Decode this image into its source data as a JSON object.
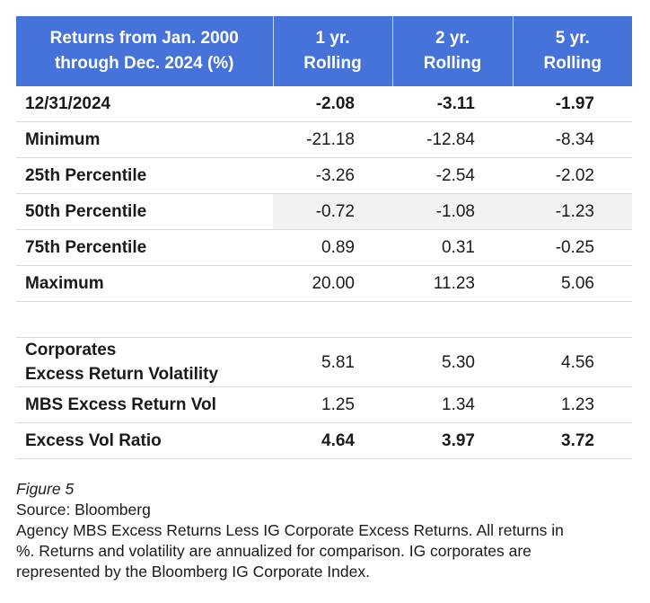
{
  "table": {
    "headers": {
      "label_line1": "Returns from Jan. 2000",
      "label_line2": "through Dec. 2024 (%)",
      "col1_line1": "1 yr.",
      "col1_line2": "Rolling",
      "col2_line1": "2 yr.",
      "col2_line2": "Rolling",
      "col3_line1": "5 yr.",
      "col3_line2": "Rolling"
    },
    "rows": [
      {
        "label": "12/31/2024",
        "v1": "-2.08",
        "v2": "-3.11",
        "v3": "-1.97"
      },
      {
        "label": "Minimum",
        "v1": "-21.18",
        "v2": "-12.84",
        "v3": "-8.34"
      },
      {
        "label": "25th Percentile",
        "v1": "-3.26",
        "v2": "-2.54",
        "v3": "-2.02"
      },
      {
        "label": "50th Percentile",
        "v1": "-0.72",
        "v2": "-1.08",
        "v3": "-1.23"
      },
      {
        "label": "75th Percentile",
        "v1": "0.89",
        "v2": "0.31",
        "v3": "-0.25"
      },
      {
        "label": "Maximum",
        "v1": "20.00",
        "v2": "11.23",
        "v3": "5.06"
      }
    ],
    "vol_rows": [
      {
        "label_line1": "Corporates",
        "label_line2": "Excess Return Volatility",
        "v1": "5.81",
        "v2": "5.30",
        "v3": "4.56"
      },
      {
        "label": "MBS Excess Return Vol",
        "v1": "1.25",
        "v2": "1.34",
        "v3": "1.23"
      },
      {
        "label": "Excess Vol Ratio",
        "v1": "4.64",
        "v2": "3.97",
        "v3": "3.72"
      }
    ]
  },
  "caption": {
    "figure": "Figure 5",
    "source": "Source: Bloomberg",
    "note_line1": "Agency MBS Excess Returns Less IG Corporate Excess Returns. All returns in",
    "note_line2": "%. Returns and volatility are annualized for comparison. IG corporates are",
    "note_line3": "represented by the Bloomberg IG Corporate Index."
  },
  "colors": {
    "header_bg": "#4573d9",
    "header_text": "#ffffff",
    "row_rule": "#d9d9d9",
    "shade": "#f2f2f2"
  }
}
